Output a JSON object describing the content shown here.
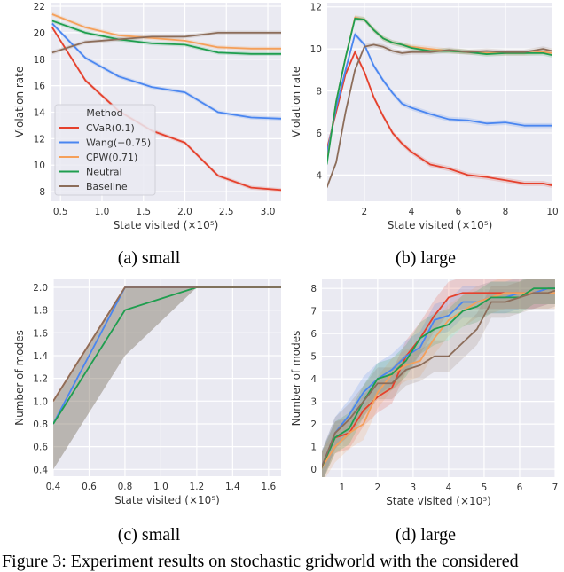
{
  "colors": {
    "background": "#eaeaf2",
    "grid": "#ffffff",
    "CVaR(0.1)": "#e5412d",
    "Wang(−0.75)": "#4a86f0",
    "CPW(0.71)": "#f5a05a",
    "Neutral": "#1f9e4f",
    "Baseline": "#8c6d5a"
  },
  "legend": {
    "title": "Method",
    "placement": "lower-left",
    "entries": [
      "CVaR(0.1)",
      "Wang(−0.75)",
      "CPW(0.71)",
      "Neutral",
      "Baseline"
    ]
  },
  "subcaptions": [
    "(a) small",
    "(b) large",
    "(c) small",
    "(d) large"
  ],
  "figure_caption": "Figure 3: Experiment results on stochastic gridworld with the considered",
  "chart_data": [
    {
      "type": "line",
      "xlabel": "State visited (×10⁵)",
      "ylabel": "Violation rate",
      "xlim": [
        0.38,
        3.16
      ],
      "ylim": [
        7.27,
        22.27
      ],
      "grid": true,
      "xticks": [
        0.5,
        1.0,
        1.5,
        2.0,
        2.5,
        3.0
      ],
      "xticklabels": [
        "0.5",
        "1.0",
        "1.5",
        "2.0",
        "2.5",
        "3.0"
      ],
      "yticks": [
        8,
        10,
        12,
        14,
        16,
        18,
        20,
        22
      ],
      "yticklabels": [
        "8",
        "10",
        "12",
        "14",
        "16",
        "18",
        "20",
        "22"
      ],
      "x": [
        0.4,
        0.8,
        1.2,
        1.6,
        2.0,
        2.4,
        2.8,
        3.2
      ],
      "series": [
        {
          "name": "CVaR(0.1)",
          "values": [
            20.4,
            16.4,
            14.1,
            12.6,
            11.7,
            9.2,
            8.3,
            8.1
          ]
        },
        {
          "name": "Wang(−0.75)",
          "values": [
            20.7,
            18.1,
            16.7,
            15.9,
            15.5,
            14.0,
            13.6,
            13.5
          ]
        },
        {
          "name": "CPW(0.71)",
          "values": [
            21.4,
            20.4,
            19.8,
            19.6,
            19.4,
            18.9,
            18.8,
            18.8
          ]
        },
        {
          "name": "Neutral",
          "values": [
            20.9,
            20.0,
            19.5,
            19.2,
            19.1,
            18.5,
            18.4,
            18.4
          ]
        },
        {
          "name": "Baseline",
          "values": [
            18.5,
            19.3,
            19.5,
            19.7,
            19.7,
            20.0,
            20.0,
            20.0
          ]
        }
      ]
    },
    {
      "type": "line",
      "xlabel": "State visited (×10⁵)",
      "ylabel": "Violation rate",
      "xlim": [
        0.42,
        10
      ],
      "ylim": [
        2.75,
        12.2
      ],
      "grid": true,
      "xticks": [
        2,
        4,
        6,
        8,
        10
      ],
      "xticklabels": [
        "2",
        "4",
        "6",
        "8",
        "10"
      ],
      "yticks": [
        4,
        6,
        8,
        10,
        12
      ],
      "yticklabels": [
        "4",
        "6",
        "8",
        "10",
        "12"
      ],
      "x": [
        0.4,
        0.8,
        1.2,
        1.6,
        2.0,
        2.4,
        2.8,
        3.2,
        3.6,
        4.0,
        4.8,
        5.6,
        6.4,
        7.2,
        8.0,
        8.8,
        9.6,
        10.0
      ],
      "series": [
        {
          "name": "CVaR(0.1)",
          "values": [
            5.2,
            7.0,
            8.8,
            9.85,
            8.9,
            7.7,
            6.8,
            6.0,
            5.5,
            5.1,
            4.5,
            4.3,
            4.0,
            3.9,
            3.75,
            3.6,
            3.6,
            3.5
          ]
        },
        {
          "name": "Wang(−0.75)",
          "values": [
            5.0,
            7.2,
            9.0,
            10.7,
            10.2,
            9.2,
            8.5,
            7.9,
            7.4,
            7.2,
            6.9,
            6.65,
            6.6,
            6.45,
            6.5,
            6.35,
            6.35,
            6.35
          ]
        },
        {
          "name": "CPW(0.71)",
          "values": [
            4.6,
            7.5,
            9.6,
            11.5,
            11.4,
            10.9,
            10.5,
            10.3,
            10.2,
            10.1,
            10.0,
            9.9,
            9.85,
            9.8,
            9.8,
            9.8,
            9.85,
            9.8
          ]
        },
        {
          "name": "Neutral",
          "values": [
            4.5,
            7.5,
            9.6,
            11.45,
            11.4,
            10.9,
            10.5,
            10.3,
            10.2,
            10.05,
            9.9,
            9.9,
            9.85,
            9.75,
            9.8,
            9.8,
            9.8,
            9.7
          ]
        },
        {
          "name": "Baseline",
          "values": [
            3.4,
            4.6,
            7.0,
            9.0,
            10.1,
            10.2,
            10.1,
            9.9,
            9.8,
            9.85,
            9.85,
            9.95,
            9.85,
            9.9,
            9.85,
            9.85,
            10.0,
            9.9
          ]
        }
      ]
    },
    {
      "type": "line",
      "xlabel": "State visited (×10⁵)",
      "ylabel": "Number of modes",
      "xlim": [
        0.4,
        1.67
      ],
      "ylim": [
        0.34,
        2.07
      ],
      "grid": true,
      "xticks": [
        0.4,
        0.6,
        0.8,
        1.0,
        1.2,
        1.4,
        1.6
      ],
      "xticklabels": [
        "0.4",
        "0.6",
        "0.8",
        "1.0",
        "1.2",
        "1.4",
        "1.6"
      ],
      "yticks": [
        0.4,
        0.6,
        0.8,
        1.0,
        1.2,
        1.4,
        1.6,
        1.8,
        2.0
      ],
      "yticklabels": [
        "0.4",
        "0.6",
        "0.8",
        "1.0",
        "1.2",
        "1.4",
        "1.6",
        "1.8",
        "2.0"
      ],
      "x": [
        0.4,
        0.8,
        1.2,
        1.6,
        1.7
      ],
      "band": {
        "lower": [
          0.4,
          1.4,
          2.0,
          2.0,
          2.0
        ],
        "upper": [
          1.0,
          2.0,
          2.0,
          2.0,
          2.0
        ]
      },
      "series": [
        {
          "name": "CVaR(0.1)",
          "values": [
            1.0,
            2.0,
            2.0,
            2.0,
            2.0
          ]
        },
        {
          "name": "CPW(0.71)",
          "values": [
            1.0,
            2.0,
            2.0,
            2.0,
            2.0
          ]
        },
        {
          "name": "Wang(−0.75)",
          "values": [
            0.8,
            2.0,
            2.0,
            2.0,
            2.0
          ]
        },
        {
          "name": "Neutral",
          "values": [
            0.8,
            1.8,
            2.0,
            2.0,
            2.0
          ]
        },
        {
          "name": "Baseline",
          "values": [
            1.0,
            2.0,
            2.0,
            2.0,
            2.0
          ]
        }
      ]
    },
    {
      "type": "line",
      "xlabel": "State visited (×10⁵)",
      "ylabel": "Number of modes",
      "xlim": [
        0.43,
        7
      ],
      "ylim": [
        -0.35,
        8.4
      ],
      "grid": true,
      "xticks": [
        1,
        2,
        3,
        4,
        5,
        6,
        7
      ],
      "xticklabels": [
        "1",
        "2",
        "3",
        "4",
        "5",
        "6",
        "7"
      ],
      "yticks": [
        0,
        1,
        2,
        3,
        4,
        5,
        6,
        7,
        8
      ],
      "yticklabels": [
        "0",
        "1",
        "2",
        "3",
        "4",
        "5",
        "6",
        "7",
        "8"
      ],
      "x": [
        0.4,
        0.8,
        1.2,
        1.6,
        2.0,
        2.4,
        2.8,
        3.2,
        3.6,
        4.0,
        4.4,
        4.8,
        5.2,
        5.6,
        6.0,
        6.4,
        6.8,
        7.0
      ],
      "series": [
        {
          "name": "CVaR(0.1)",
          "values": [
            0,
            1.4,
            1.6,
            2.6,
            3.2,
            3.6,
            5.0,
            5.8,
            6.8,
            7.6,
            7.8,
            7.8,
            7.8,
            7.8,
            7.8,
            7.8,
            8,
            8
          ]
        },
        {
          "name": "Wang(−0.75)",
          "values": [
            0,
            1.6,
            2.4,
            3.4,
            4.0,
            4.4,
            5.0,
            5.4,
            6.6,
            6.8,
            7.4,
            7.4,
            7.6,
            7.6,
            7.8,
            7.8,
            8,
            8
          ]
        },
        {
          "name": "CPW(0.71)",
          "values": [
            0,
            1.0,
            1.6,
            2.0,
            3.4,
            4.2,
            4.6,
            4.8,
            5.8,
            6.6,
            7.0,
            7.4,
            7.6,
            7.8,
            7.8,
            7.8,
            7.8,
            7.8
          ]
        },
        {
          "name": "Neutral",
          "values": [
            0,
            1.4,
            1.8,
            3.0,
            4.0,
            4.2,
            4.8,
            5.8,
            6.2,
            6.4,
            7.0,
            7.2,
            7.6,
            7.6,
            7.6,
            8.0,
            8.0,
            8.0
          ]
        },
        {
          "name": "Baseline",
          "values": [
            0,
            1.6,
            2.2,
            3.0,
            3.8,
            3.8,
            4.4,
            4.6,
            5.0,
            5.0,
            5.6,
            6.2,
            7.4,
            7.4,
            7.6,
            7.8,
            7.8,
            7.9
          ]
        }
      ]
    }
  ]
}
